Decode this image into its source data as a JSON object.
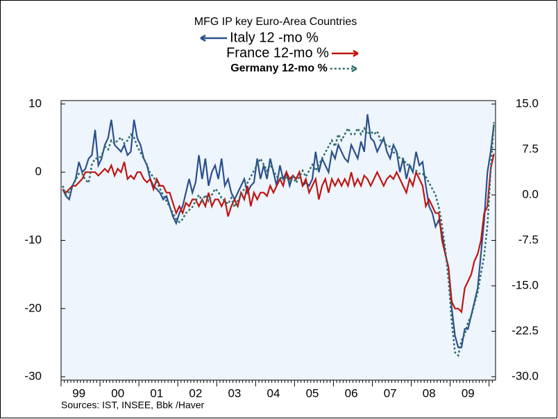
{
  "chart_data": {
    "type": "line",
    "title": "MFG IP key Euro-Area Countries",
    "annotation": "Sources:  IST, INSEE, Bbk /Haver",
    "categories": [
      null,
      null,
      null,
      null,
      null,
      "99",
      null,
      null,
      null,
      null,
      null,
      null,
      null,
      null,
      null,
      null,
      null,
      "00",
      null,
      null,
      null,
      null,
      null,
      null,
      null,
      null,
      null,
      null,
      null,
      "01",
      null,
      null,
      null,
      null,
      null,
      null,
      null,
      null,
      null,
      null,
      null,
      "02",
      null,
      null,
      null,
      null,
      null,
      null,
      null,
      null,
      null,
      null,
      null,
      "03",
      null,
      null,
      null,
      null,
      null,
      null,
      null,
      null,
      null,
      null,
      null,
      "04",
      null,
      null,
      null,
      null,
      null,
      null,
      null,
      null,
      null,
      null,
      null,
      "05",
      null,
      null,
      null,
      null,
      null,
      null,
      null,
      null,
      null,
      null,
      null,
      "06",
      null,
      null,
      null,
      null,
      null,
      null,
      null,
      null,
      null,
      null,
      null,
      "07",
      null,
      null,
      null,
      null,
      null,
      null,
      null,
      null,
      null,
      null,
      null,
      "08",
      null,
      null,
      null,
      null,
      null,
      null,
      null,
      null,
      null,
      null,
      null,
      "09",
      null,
      null,
      null,
      null,
      null,
      null,
      null,
      null
    ],
    "series": [
      {
        "name": "Italy 12 -mo %",
        "color": "#2b4f8c",
        "dash": "solid",
        "arrow": "left",
        "values": [
          -2.5,
          -3.5,
          -4,
          -2,
          -1,
          1.5,
          0,
          0.5,
          2,
          2.5,
          6.2,
          1,
          2,
          4,
          5,
          7.7,
          4,
          3.5,
          3,
          4,
          2.5,
          3,
          7.7,
          5,
          4,
          2,
          1,
          -1,
          -2,
          -2.5,
          -3,
          -4,
          -3.5,
          -5,
          -6.5,
          -7.5,
          -6,
          -5,
          -3,
          -1,
          -3,
          -1.5,
          2.5,
          -1,
          2,
          -2,
          0,
          1,
          -1,
          2,
          -2,
          -1,
          -3,
          -4,
          -3,
          -2,
          -1,
          -3,
          -2,
          -1.5,
          2,
          -1,
          1,
          -1,
          2,
          0,
          -2,
          1,
          -1,
          0,
          -2,
          -0.5,
          -1,
          0,
          -2,
          -1.5,
          -2,
          -1,
          3,
          0,
          2,
          1,
          0,
          3,
          2,
          4,
          3,
          2,
          1.5,
          4,
          3,
          2,
          4.5,
          3,
          8.5,
          5,
          4.5,
          3,
          4,
          5,
          3,
          2,
          4,
          3,
          0,
          2,
          -1,
          1,
          0,
          3,
          1,
          1.5,
          -2,
          -5,
          -6,
          -8,
          -7,
          -9,
          -12,
          -14,
          -20,
          -24,
          -25.7,
          -25.7,
          -23,
          -23,
          -21,
          -19,
          -17,
          -12,
          -7,
          0,
          3,
          7
        ]
      },
      {
        "name": "France 12-mo %",
        "color": "#c0140f",
        "dash": "solid",
        "arrow": "right",
        "values": [
          -2.5,
          -3,
          -2.5,
          -2,
          -2,
          -1.5,
          -1,
          0,
          0,
          0,
          0,
          -0.5,
          0,
          0.5,
          0,
          1,
          -0.5,
          0.5,
          0,
          1.5,
          -1,
          -0.5,
          -1,
          0,
          0,
          -1,
          -1.5,
          -1,
          -2.5,
          -1,
          -2,
          -2,
          -3,
          -3,
          -4.5,
          -6,
          -5,
          -6,
          -4.5,
          -5,
          -4,
          -4,
          -5,
          -4,
          -5,
          -3,
          -5,
          -4,
          -4,
          -5,
          -4,
          -6.5,
          -5,
          -4,
          -5,
          -3,
          -4,
          -2,
          -5,
          -3,
          -4,
          -3,
          -3,
          -3.5,
          -2,
          -3,
          -2,
          -1,
          -2,
          0,
          -1,
          -0.5,
          -1,
          0,
          -2,
          -1,
          -3,
          -2,
          -1,
          -4,
          -2,
          -1,
          -3,
          -1,
          -2,
          -1,
          -2,
          -1,
          -2,
          0,
          -2,
          -1,
          -2,
          -0.5,
          -1,
          -2,
          -1,
          0,
          -1,
          -2,
          -1,
          -0.5,
          -1,
          0,
          -1,
          -2,
          -3,
          -1,
          -2,
          0,
          -1,
          -2,
          -5,
          -4,
          -5,
          -6,
          -6,
          -10,
          -12,
          -14,
          -19,
          -20,
          -20,
          -20.5,
          -17,
          -16,
          -15,
          -13,
          -12,
          -10,
          -6,
          -5,
          0.5,
          2.7
        ]
      },
      {
        "name": "Germany 12-mo %",
        "color": "#2f6e6b",
        "dash": "dotted",
        "arrow": "right",
        "axis": "y2",
        "values": [
          1.5,
          0,
          0.5,
          1.5,
          2.5,
          3.5,
          3.5,
          2.5,
          2,
          5,
          6,
          6,
          6.5,
          8,
          7.5,
          9,
          8.5,
          9,
          9.5,
          8.5,
          9,
          10,
          9.5,
          8,
          7,
          6,
          5,
          3.5,
          3,
          2,
          1,
          0,
          -1,
          -2,
          -3,
          -4,
          -4.5,
          -4,
          -3,
          -2.5,
          -2,
          -1,
          0,
          -1,
          0,
          -1,
          0,
          1,
          0.5,
          -0.5,
          -1,
          -1.5,
          -0.5,
          -2,
          -1,
          0,
          1,
          2,
          3,
          4,
          5,
          6,
          5,
          4,
          5,
          4,
          3,
          3,
          2.5,
          3,
          2,
          3,
          2,
          3,
          4,
          3,
          4,
          5,
          4,
          5,
          6,
          7,
          8,
          9,
          8,
          10,
          9,
          10,
          11,
          10,
          10,
          11,
          10,
          11,
          10,
          10.5,
          10,
          10.5,
          9,
          9,
          8,
          8,
          7,
          7,
          6,
          6,
          5,
          5,
          4,
          4,
          3.5,
          3.5,
          3,
          2,
          1,
          0,
          -2,
          -5,
          -9,
          -14,
          -21,
          -26,
          -26.5,
          -24,
          -23,
          -21,
          -20,
          -18,
          -16,
          -13,
          -10,
          -5,
          4,
          12
        ]
      }
    ],
    "ylim": [
      -30.5,
      10.5
    ],
    "yticks": [
      10,
      0,
      -10,
      -20,
      -30
    ],
    "y2lim": [
      -30.57,
      15.57
    ],
    "y2ticks": [
      {
        "value": 15,
        "label": "15.0"
      },
      {
        "value": 7.5,
        "label": "7.5"
      },
      {
        "value": 0,
        "label": "0.0"
      },
      {
        "value": -7.5,
        "label": "-7.5"
      },
      {
        "value": -15,
        "label": "-15.0"
      },
      {
        "value": -22.5,
        "label": "-22.5"
      },
      {
        "value": -30,
        "label": "-30.0"
      }
    ],
    "grid": false
  }
}
